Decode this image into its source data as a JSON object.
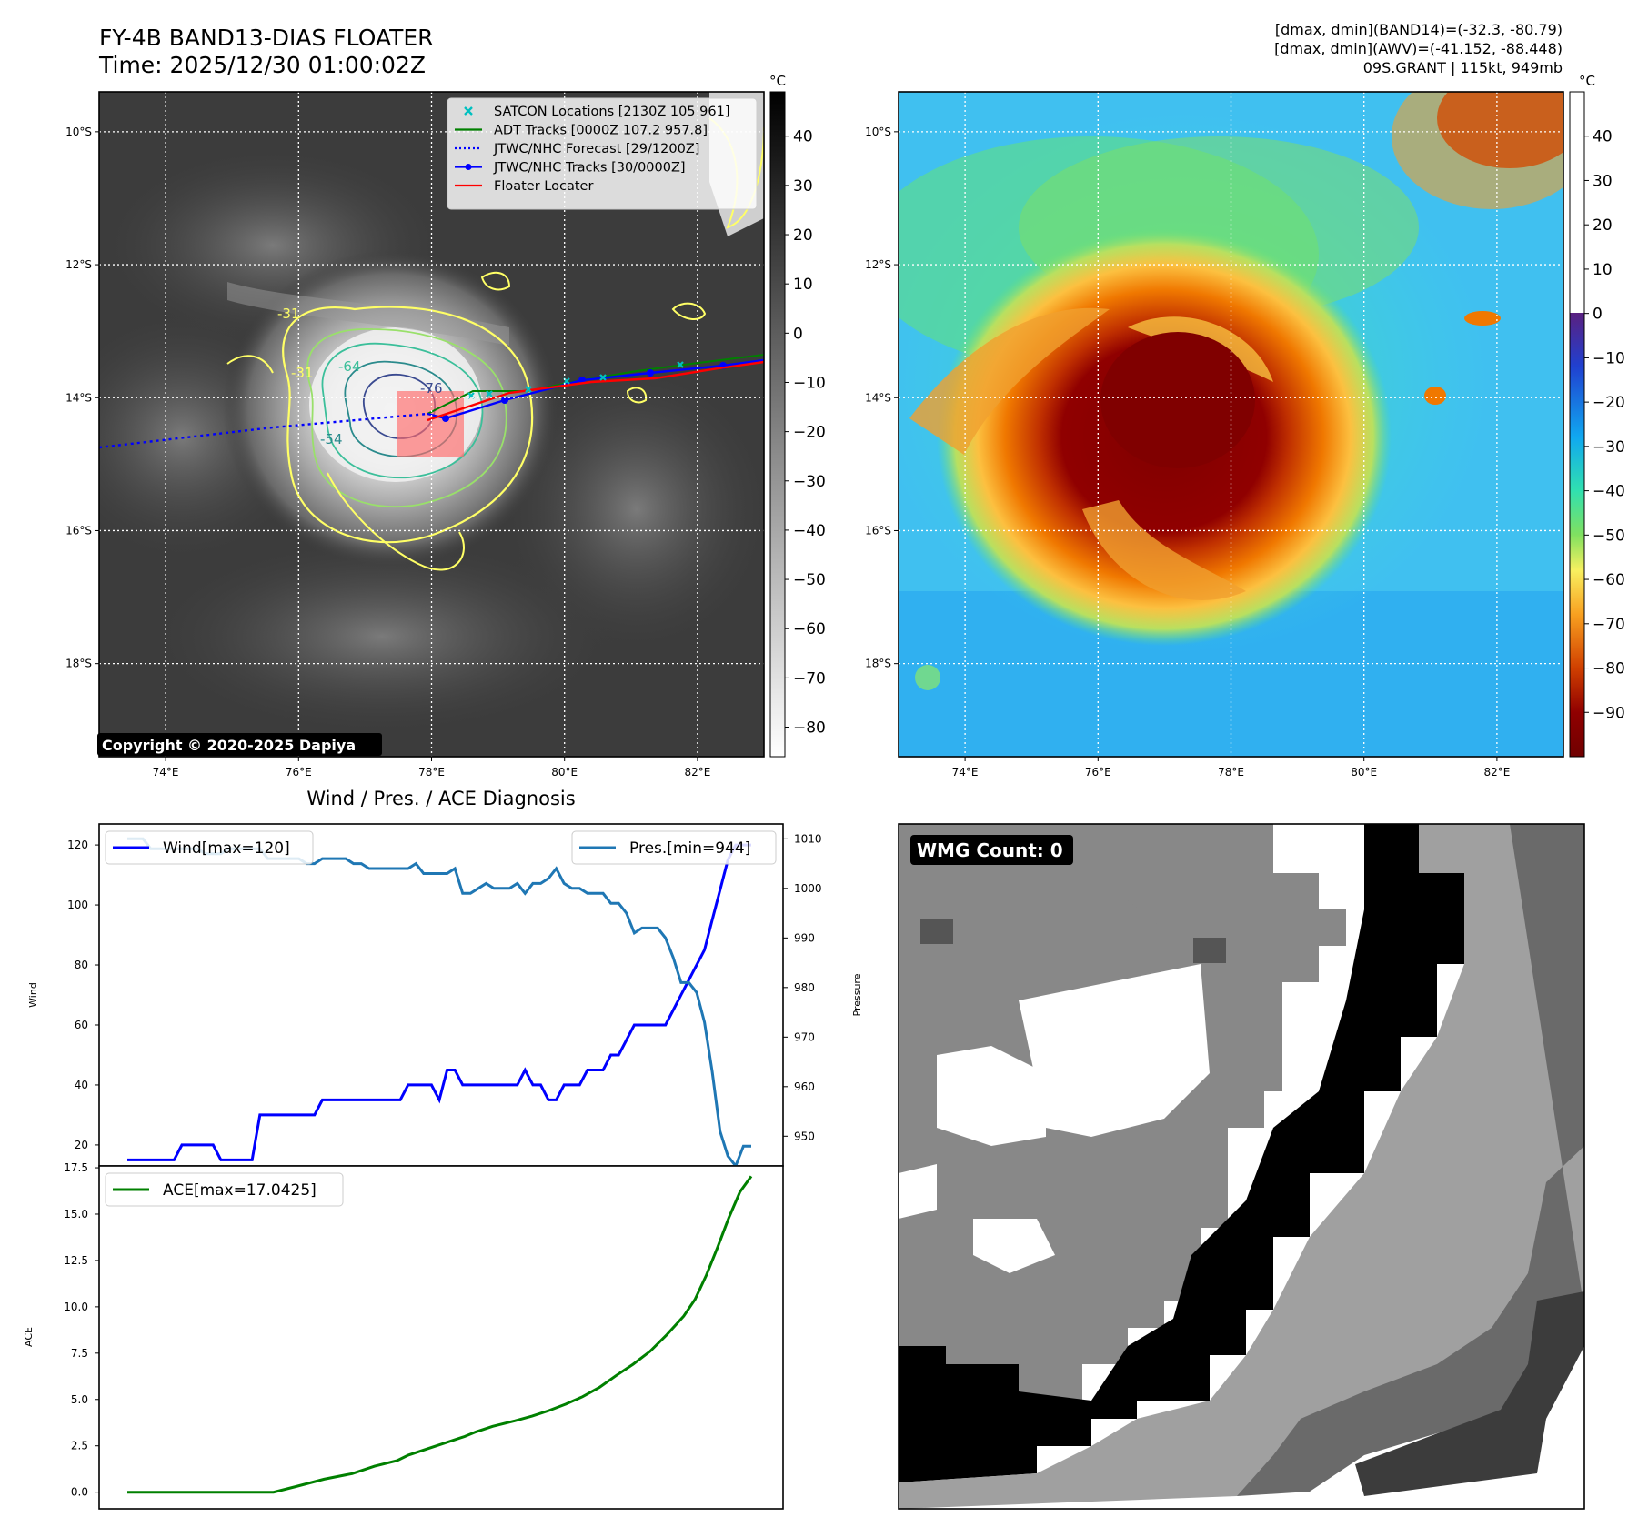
{
  "header": {
    "title": "FY-4B BAND13-DIAS FLOATER",
    "time": "Time: 2025/12/30 01:00:02Z",
    "info_lines": [
      "[dmax, dmin](BAND14)=(-32.3, -80.79)",
      "[dmax, dmin](AWV)=(-41.152, -88.448)",
      "09S.GRANT | 115kt, 949mb"
    ]
  },
  "map_axes": {
    "lat_labels": [
      "10°S",
      "12°S",
      "14°S",
      "16°S",
      "18°S"
    ],
    "lon_labels": [
      "74°E",
      "76°E",
      "78°E",
      "80°E",
      "82°E"
    ],
    "lat_values": [
      -10,
      -12,
      -14,
      -16,
      -18
    ],
    "lon_values": [
      74,
      76,
      78,
      80,
      82
    ],
    "lon_range": [
      73.0,
      83.0
    ],
    "lat_range": [
      -9.4,
      -19.4
    ]
  },
  "ir_panel": {
    "copyright": "Copyright © 2020-2025 Dapiya",
    "legend": [
      {
        "label": "SATCON Locations [2130Z 105 961]",
        "color": "#00c0c0",
        "style": "x"
      },
      {
        "label": "ADT Tracks [0000Z 107.2 957.8]",
        "color": "#008000",
        "style": "line"
      },
      {
        "label": "JTWC/NHC Forecast [29/1200Z]",
        "color": "#0000ff",
        "style": "dotted"
      },
      {
        "label": "JTWC/NHC Tracks [30/0000Z]",
        "color": "#0000ff",
        "style": "line-dot"
      },
      {
        "label": "Floater Locater",
        "color": "#ff0000",
        "style": "line"
      }
    ],
    "contour_labels": [
      "-31",
      "-31",
      "-64",
      "-76",
      "-54"
    ],
    "colorbar_unit": "°C",
    "colorbar_ticks": [
      "40",
      "30",
      "20",
      "10",
      "0",
      "−10",
      "−20",
      "−30",
      "−40",
      "−50",
      "−60",
      "−70",
      "−80"
    ],
    "colorbar_values": [
      40,
      30,
      20,
      10,
      0,
      -10,
      -20,
      -30,
      -40,
      -50,
      -60,
      -70,
      -80
    ],
    "colorbar_range": [
      49,
      -86
    ]
  },
  "awv_panel": {
    "colorbar_unit": "°C",
    "colorbar_ticks": [
      "40",
      "30",
      "20",
      "10",
      "0",
      "−10",
      "−20",
      "−30",
      "−40",
      "−50",
      "−60",
      "−70",
      "−80",
      "−90"
    ],
    "colorbar_values": [
      40,
      30,
      20,
      10,
      0,
      -10,
      -20,
      -30,
      -40,
      -50,
      -60,
      -70,
      -80,
      -90
    ],
    "colorbar_range": [
      50,
      -100
    ]
  },
  "chart_data": [
    {
      "type": "line",
      "title": "Wind / Pres. / ACE Diagnosis",
      "xlabel": "",
      "ylabel": "Wind",
      "ylabel_right": "Pressure",
      "ylim": [
        13,
        127
      ],
      "ylim_right": [
        944,
        1013
      ],
      "y_ticks": [
        20,
        40,
        60,
        80,
        100,
        120
      ],
      "y_ticks_right": [
        950,
        960,
        970,
        980,
        990,
        1000,
        1010
      ],
      "series": [
        {
          "name": "Wind[max=120]",
          "color": "#0000ff",
          "axis": "left",
          "values": [
            15,
            15,
            15,
            15,
            15,
            15,
            15,
            20,
            20,
            20,
            20,
            20,
            15,
            15,
            15,
            15,
            15,
            30,
            30,
            30,
            30,
            30,
            30,
            30,
            30,
            35,
            35,
            35,
            35,
            35,
            35,
            35,
            35,
            35,
            35,
            35,
            40,
            40,
            40,
            40,
            35,
            45,
            45,
            40,
            40,
            40,
            40,
            40,
            40,
            40,
            40,
            45,
            40,
            40,
            35,
            35,
            40,
            40,
            40,
            45,
            45,
            45,
            50,
            50,
            55,
            60,
            60,
            60,
            60,
            60,
            65,
            70,
            75,
            80,
            85,
            95,
            105,
            115,
            120,
            120,
            120
          ]
        },
        {
          "name": "Pres.[min=944]",
          "color": "#1f77b4",
          "axis": "right",
          "values": [
            1010,
            1010,
            1010,
            1008,
            1008,
            1008,
            1008,
            1008,
            1008,
            1008,
            1007,
            1007,
            1007,
            1008,
            1008,
            1008,
            1008,
            1008,
            1006,
            1006,
            1006,
            1006,
            1006,
            1005,
            1005,
            1006,
            1006,
            1006,
            1006,
            1005,
            1005,
            1004,
            1004,
            1004,
            1004,
            1004,
            1004,
            1005,
            1003,
            1003,
            1003,
            1003,
            1004,
            999,
            999,
            1000,
            1001,
            1000,
            1000,
            1000,
            1001,
            999,
            1001,
            1001,
            1002,
            1004,
            1001,
            1000,
            1000,
            999,
            999,
            999,
            997,
            997,
            995,
            991,
            992,
            992,
            992,
            990,
            986,
            981,
            981,
            979,
            973,
            963,
            951,
            946,
            944,
            948,
            948
          ]
        }
      ]
    },
    {
      "type": "area",
      "xlabel": "",
      "ylabel": "ACE",
      "ylim": [
        -0.9,
        17.6
      ],
      "y_ticks": [
        0.0,
        2.5,
        5.0,
        7.5,
        10.0,
        12.5,
        15.0,
        17.5
      ],
      "y_tick_labels": [
        "0.0",
        "2.5",
        "5.0",
        "7.5",
        "10.0",
        "12.5",
        "15.0",
        "17.5"
      ],
      "series": [
        {
          "name": "ACE[max=17.0425]",
          "color": "#008000",
          "points": [
            [
              0,
              0
            ],
            [
              26,
              0
            ],
            [
              30,
              0.3
            ],
            [
              35,
              0.7
            ],
            [
              40,
              1.0
            ],
            [
              44,
              1.4
            ],
            [
              48,
              1.7
            ],
            [
              50,
              2.0
            ],
            [
              55,
              2.5
            ],
            [
              60,
              3.0
            ],
            [
              62,
              3.25
            ],
            [
              65,
              3.55
            ],
            [
              69,
              3.85
            ],
            [
              72,
              4.1
            ],
            [
              75,
              4.4
            ],
            [
              78,
              4.75
            ],
            [
              81,
              5.15
            ],
            [
              84,
              5.65
            ],
            [
              87,
              6.3
            ],
            [
              90,
              6.9
            ],
            [
              93,
              7.6
            ],
            [
              96,
              8.5
            ],
            [
              99,
              9.5
            ],
            [
              101,
              10.4
            ],
            [
              103,
              11.7
            ],
            [
              105,
              13.2
            ],
            [
              107,
              14.8
            ],
            [
              109,
              16.2
            ],
            [
              111,
              17.0425
            ]
          ]
        }
      ]
    }
  ],
  "wmg_panel": {
    "badge": "WMG Count: 0"
  }
}
